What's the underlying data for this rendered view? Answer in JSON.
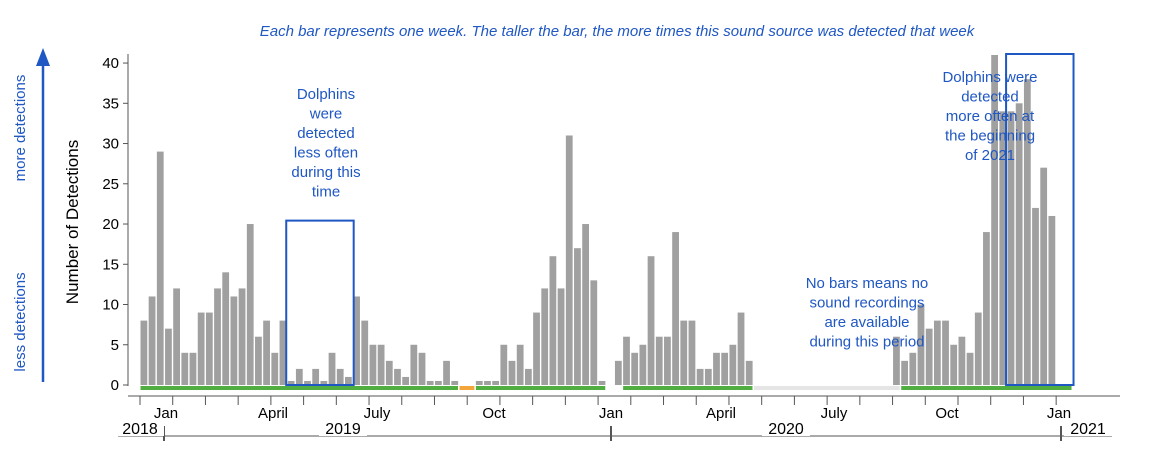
{
  "chart_data": {
    "type": "bar",
    "caption": "Each bar represents one week. The taller the bar, the more times this sound source was detected that week",
    "ylabel": "Number of Detections",
    "side_labels": {
      "top": "more detections",
      "bottom": "less detections"
    },
    "ylim": [
      0,
      41
    ],
    "yticks": [
      0,
      5,
      10,
      15,
      20,
      25,
      30,
      35,
      40
    ],
    "month_ticks": [
      "Jan",
      "April",
      "July",
      "Oct",
      "Jan",
      "April",
      "July",
      "Oct",
      "Jan"
    ],
    "years": [
      "2018",
      "2019",
      "2020",
      "2021"
    ],
    "values": [
      8,
      11,
      29,
      7,
      12,
      4,
      4,
      9,
      9,
      12,
      14,
      11,
      12,
      20,
      6,
      8,
      4,
      8,
      0.5,
      2,
      0.5,
      2,
      0.5,
      4,
      2,
      1,
      11,
      8,
      5,
      5,
      3,
      2,
      1,
      5,
      4,
      0.5,
      0.5,
      3,
      0.5,
      null,
      null,
      0.5,
      0.5,
      0.5,
      5,
      3,
      5,
      2,
      9,
      12,
      16,
      12,
      31,
      17,
      20,
      13,
      0.5,
      null,
      3,
      6,
      4,
      5,
      16,
      6,
      6,
      19,
      8,
      8,
      2,
      2,
      4,
      4,
      5,
      9,
      3,
      null,
      null,
      null,
      null,
      null,
      null,
      null,
      null,
      null,
      null,
      null,
      null,
      null,
      null,
      null,
      null,
      null,
      6,
      3,
      4,
      10,
      7,
      8,
      8,
      5,
      6,
      4,
      9,
      19,
      41,
      34,
      34,
      35,
      38,
      22,
      27,
      21
    ],
    "coverage": [
      {
        "status": "recorded",
        "color": "#4fae3f",
        "start_week": 0,
        "end_week": 38
      },
      {
        "status": "partial",
        "color": "#f2a53a",
        "start_week": 39,
        "end_week": 40
      },
      {
        "status": "recorded",
        "color": "#4fae3f",
        "start_week": 41,
        "end_week": 56
      },
      {
        "status": "recorded",
        "color": "#4fae3f",
        "start_week": 59,
        "end_week": 74
      },
      {
        "status": "no recordings",
        "color": "#e5e5e5",
        "start_week": 75,
        "end_week": 92
      },
      {
        "status": "recorded",
        "color": "#4fae3f",
        "start_week": 93,
        "end_week": 113
      }
    ],
    "annotations": [
      {
        "text": [
          "Dolphins",
          "were",
          "detected",
          "less often",
          "during this",
          "time"
        ],
        "box_weeks": [
          18,
          25
        ],
        "box_ymax": 20.3
      },
      {
        "text": [
          "No bars means no",
          "sound recordings",
          "are available",
          "during this period"
        ]
      },
      {
        "text": [
          "Dolphins were",
          "detected",
          "more often at",
          "the beginning",
          "of 2021"
        ],
        "box_weeks": [
          106,
          113
        ],
        "box_ymax": 41
      }
    ],
    "grid": false,
    "colors": {
      "bar": "#a0a0a0",
      "annotation": "#1f57c3",
      "axis": "#555555"
    }
  }
}
